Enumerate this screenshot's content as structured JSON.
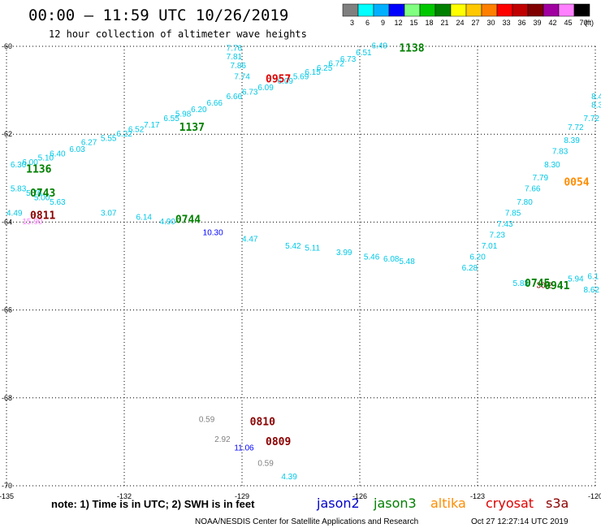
{
  "header": {
    "title": "00:00 – 11:59 UTC 10/26/2019",
    "subtitle": "12 hour collection of altimeter wave heights"
  },
  "colorbar": {
    "labels": [
      "3",
      "6",
      "9",
      "12",
      "15",
      "18",
      "21",
      "24",
      "27",
      "30",
      "33",
      "36",
      "39",
      "42",
      "45",
      "70"
    ],
    "unit": "(ft)",
    "colors": [
      "#808080",
      "#00ffff",
      "#00b0ff",
      "#0000ff",
      "#80ff80",
      "#00c800",
      "#008000",
      "#ffff00",
      "#ffc800",
      "#ff8000",
      "#ff0000",
      "#c00000",
      "#800000",
      "#a000a0",
      "#ff80ff",
      "#000000"
    ]
  },
  "footer": {
    "note": "note: 1) Time is in UTC; 2) SWH is in feet",
    "legend": [
      {
        "name": "jason2",
        "color": "#0000cc"
      },
      {
        "name": "jason3",
        "color": "#008000"
      },
      {
        "name": "altika",
        "color": "#ff8c00"
      },
      {
        "name": "cryosat",
        "color": "#e00000"
      },
      {
        "name": "s3a",
        "color": "#8b0000"
      }
    ],
    "credit": "NOAA/NESDIS Center for Satellite Applications and Research",
    "timestamp": "Oct 27 12:27:14 UTC 2019"
  },
  "chart_data": {
    "type": "scatter",
    "title": "00:00 – 11:59 UTC 10/26/2019",
    "subtitle": "12 hour collection of altimeter wave heights",
    "xlim": [
      -135,
      -120
    ],
    "ylim": [
      -70,
      -60
    ],
    "x_ticks": [
      {
        "value": -135,
        "label": "-135"
      },
      {
        "value": -132,
        "label": "-132"
      },
      {
        "value": -129,
        "label": "-129"
      },
      {
        "value": -126,
        "label": "-126"
      },
      {
        "value": -123,
        "label": "-123"
      },
      {
        "value": -120,
        "label": "-120"
      }
    ],
    "y_ticks": [
      {
        "value": -60,
        "label": "-60"
      },
      {
        "value": -62,
        "label": "-62"
      },
      {
        "value": -64,
        "label": "-64"
      },
      {
        "value": -66,
        "label": "-66"
      },
      {
        "value": -68,
        "label": "-68"
      },
      {
        "value": -70,
        "label": "-70"
      }
    ],
    "grid": true,
    "points": [
      {
        "x": -129.4,
        "y": -60.1,
        "label": "7.76",
        "color": "#00c8e6"
      },
      {
        "x": -129.4,
        "y": -60.3,
        "label": "7.81",
        "color": "#00c8e6"
      },
      {
        "x": -129.3,
        "y": -60.5,
        "label": "7.86",
        "color": "#00c8e6"
      },
      {
        "x": -129.2,
        "y": -60.75,
        "label": "7.74",
        "color": "#00c8e6"
      },
      {
        "x": -129.0,
        "y": -61.1,
        "label": "6.73",
        "color": "#00c8e6"
      },
      {
        "x": -128.6,
        "y": -61.0,
        "label": "6.09",
        "color": "#00c8e6"
      },
      {
        "x": -128.1,
        "y": -60.85,
        "label": "6.09",
        "color": "#00c8e6"
      },
      {
        "x": -127.7,
        "y": -60.75,
        "label": "5.69",
        "color": "#00c8e6"
      },
      {
        "x": -127.4,
        "y": -60.65,
        "label": "6.15",
        "color": "#00c8e6"
      },
      {
        "x": -127.1,
        "y": -60.55,
        "label": "6.25",
        "color": "#00c8e6"
      },
      {
        "x": -126.8,
        "y": -60.45,
        "label": "6.72",
        "color": "#00c8e6"
      },
      {
        "x": -126.5,
        "y": -60.35,
        "label": "6.73",
        "color": "#00c8e6"
      },
      {
        "x": -126.1,
        "y": -60.2,
        "label": "6.51",
        "color": "#00c8e6"
      },
      {
        "x": -125.7,
        "y": -60.05,
        "label": "6.49",
        "color": "#00c8e6"
      },
      {
        "x": -129.4,
        "y": -61.2,
        "label": "6.66",
        "color": "#00c8e6"
      },
      {
        "x": -129.9,
        "y": -61.35,
        "label": "6.66",
        "color": "#00c8e6"
      },
      {
        "x": -130.3,
        "y": -61.5,
        "label": "6.20",
        "color": "#00c8e6"
      },
      {
        "x": -130.7,
        "y": -61.6,
        "label": "5.98",
        "color": "#00c8e6"
      },
      {
        "x": -131.0,
        "y": -61.7,
        "label": "6.55",
        "color": "#00c8e6"
      },
      {
        "x": -131.5,
        "y": -61.85,
        "label": "7.17",
        "color": "#00c8e6"
      },
      {
        "x": -131.9,
        "y": -61.95,
        "label": "6.52",
        "color": "#00c8e6"
      },
      {
        "x": -132.2,
        "y": -62.05,
        "label": "6.22",
        "color": "#00c8e6"
      },
      {
        "x": -132.6,
        "y": -62.15,
        "label": "5.55",
        "color": "#00c8e6"
      },
      {
        "x": -133.1,
        "y": -62.25,
        "label": "6.27",
        "color": "#00c8e6"
      },
      {
        "x": -133.4,
        "y": -62.4,
        "label": "6.03",
        "color": "#00c8e6"
      },
      {
        "x": -133.9,
        "y": -62.5,
        "label": "6.40",
        "color": "#00c8e6"
      },
      {
        "x": -134.2,
        "y": -62.6,
        "label": "5.10",
        "color": "#00c8e6"
      },
      {
        "x": -134.6,
        "y": -62.7,
        "label": "6.00",
        "color": "#00c8e6"
      },
      {
        "x": -134.9,
        "y": -62.75,
        "label": "6.30",
        "color": "#00c8e6"
      },
      {
        "x": -134.9,
        "y": -63.3,
        "label": "5.83",
        "color": "#00c8e6"
      },
      {
        "x": -134.5,
        "y": -63.4,
        "label": "5.76",
        "color": "#00c8e6"
      },
      {
        "x": -134.3,
        "y": -63.5,
        "label": "5.00",
        "color": "#00c8e6"
      },
      {
        "x": -133.9,
        "y": -63.6,
        "label": "5.63",
        "color": "#00c8e6"
      },
      {
        "x": -135.0,
        "y": -63.85,
        "label": "4.49",
        "color": "#00c8e6"
      },
      {
        "x": -134.6,
        "y": -64.05,
        "label": "15.90",
        "color": "#ff80ff"
      },
      {
        "x": -132.6,
        "y": -63.85,
        "label": "3.07",
        "color": "#00c8e6"
      },
      {
        "x": -131.7,
        "y": -63.95,
        "label": "6.14",
        "color": "#00c8e6"
      },
      {
        "x": -131.1,
        "y": -64.05,
        "label": "4.90",
        "color": "#00c8e6"
      },
      {
        "x": -130.0,
        "y": -64.3,
        "label": "10.30",
        "color": "#0000ff"
      },
      {
        "x": -129.0,
        "y": -64.45,
        "label": "4.47",
        "color": "#00c8e6"
      },
      {
        "x": -127.9,
        "y": -64.6,
        "label": "5.42",
        "color": "#00c8e6"
      },
      {
        "x": -127.4,
        "y": -64.65,
        "label": "5.11",
        "color": "#00c8e6"
      },
      {
        "x": -126.6,
        "y": -64.75,
        "label": "3.99",
        "color": "#00c8e6"
      },
      {
        "x": -125.9,
        "y": -64.85,
        "label": "5.46",
        "color": "#00c8e6"
      },
      {
        "x": -125.4,
        "y": -64.9,
        "label": "6.08",
        "color": "#00c8e6"
      },
      {
        "x": -125.0,
        "y": -64.95,
        "label": "5.48",
        "color": "#00c8e6"
      },
      {
        "x": -120.1,
        "y": -61.2,
        "label": "8.4",
        "color": "#00c8e6"
      },
      {
        "x": -120.1,
        "y": -61.4,
        "label": "8.39",
        "color": "#00c8e6"
      },
      {
        "x": -120.3,
        "y": -61.7,
        "label": "7.72",
        "color": "#00c8e6"
      },
      {
        "x": -120.7,
        "y": -61.9,
        "label": "7.72",
        "color": "#00c8e6"
      },
      {
        "x": -120.8,
        "y": -62.2,
        "label": "8.39",
        "color": "#00c8e6"
      },
      {
        "x": -121.1,
        "y": -62.45,
        "label": "7.83",
        "color": "#00c8e6"
      },
      {
        "x": -121.3,
        "y": -62.75,
        "label": "8.30",
        "color": "#00c8e6"
      },
      {
        "x": -121.6,
        "y": -63.05,
        "label": "7.79",
        "color": "#00c8e6"
      },
      {
        "x": -121.8,
        "y": -63.3,
        "label": "7.66",
        "color": "#00c8e6"
      },
      {
        "x": -122.0,
        "y": -63.6,
        "label": "7.80",
        "color": "#00c8e6"
      },
      {
        "x": -122.3,
        "y": -63.85,
        "label": "7.85",
        "color": "#00c8e6"
      },
      {
        "x": -122.5,
        "y": -64.1,
        "label": "7.43",
        "color": "#00c8e6"
      },
      {
        "x": -122.7,
        "y": -64.35,
        "label": "7.23",
        "color": "#00c8e6"
      },
      {
        "x": -122.9,
        "y": -64.6,
        "label": "7.01",
        "color": "#00c8e6"
      },
      {
        "x": -123.2,
        "y": -64.85,
        "label": "6.20",
        "color": "#00c8e6"
      },
      {
        "x": -123.4,
        "y": -65.1,
        "label": "6.28",
        "color": "#00c8e6"
      },
      {
        "x": -122.1,
        "y": -65.45,
        "label": "5.83",
        "color": "#00c8e6"
      },
      {
        "x": -121.5,
        "y": -65.5,
        "label": "30.2",
        "color": "#800000"
      },
      {
        "x": -120.7,
        "y": -65.35,
        "label": "5.94",
        "color": "#00c8e6"
      },
      {
        "x": -120.2,
        "y": -65.3,
        "label": "6.1",
        "color": "#00c8e6"
      },
      {
        "x": -120.3,
        "y": -65.6,
        "label": "8.62",
        "color": "#00c8e6"
      },
      {
        "x": -130.1,
        "y": -68.55,
        "label": "0.59",
        "color": "#808080"
      },
      {
        "x": -129.7,
        "y": -69.0,
        "label": "2.92",
        "color": "#808080"
      },
      {
        "x": -129.2,
        "y": -69.2,
        "label": "11.06",
        "color": "#0000ff"
      },
      {
        "x": -128.6,
        "y": -69.55,
        "label": "0.59",
        "color": "#808080"
      },
      {
        "x": -128.0,
        "y": -69.85,
        "label": "4.39",
        "color": "#00c8e6"
      }
    ],
    "time_labels": [
      {
        "x": -125.0,
        "y": -60.05,
        "label": "1138",
        "satellite": "jason3",
        "color": "#008000"
      },
      {
        "x": -128.4,
        "y": -60.75,
        "label": "0957",
        "satellite": "cryosat",
        "color": "#e00000"
      },
      {
        "x": -130.6,
        "y": -61.85,
        "label": "1137",
        "satellite": "jason3",
        "color": "#008000"
      },
      {
        "x": -134.5,
        "y": -62.8,
        "label": "1136",
        "satellite": "jason3",
        "color": "#008000"
      },
      {
        "x": -134.4,
        "y": -63.35,
        "label": "0743",
        "satellite": "jason3",
        "color": "#008000"
      },
      {
        "x": -134.4,
        "y": -63.85,
        "label": "0811",
        "satellite": "s3a",
        "color": "#8b0000"
      },
      {
        "x": -130.7,
        "y": -63.95,
        "label": "0744",
        "satellite": "jason3",
        "color": "#008000"
      },
      {
        "x": -121.8,
        "y": -65.4,
        "label": "0745",
        "satellite": "jason3",
        "color": "#008000"
      },
      {
        "x": -121.3,
        "y": -65.45,
        "label": "0941",
        "satellite": "jason3",
        "color": "#008000"
      },
      {
        "x": -120.8,
        "y": -63.1,
        "label": "0054",
        "satellite": "altika",
        "color": "#ff8c00"
      },
      {
        "x": -128.8,
        "y": -68.55,
        "label": "0810",
        "satellite": "s3a",
        "color": "#8b0000"
      },
      {
        "x": -128.4,
        "y": -69.0,
        "label": "0809",
        "satellite": "s3a",
        "color": "#8b0000"
      }
    ]
  }
}
